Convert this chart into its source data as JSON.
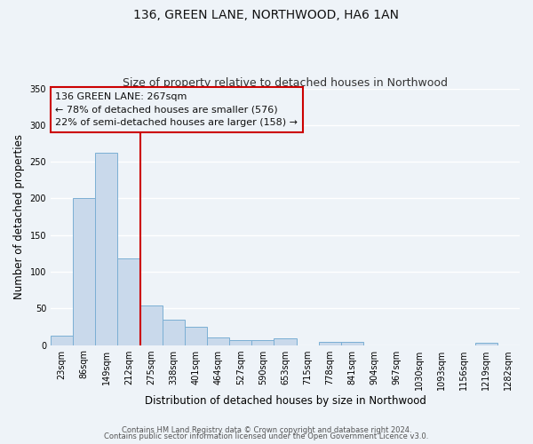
{
  "title": "136, GREEN LANE, NORTHWOOD, HA6 1AN",
  "subtitle": "Size of property relative to detached houses in Northwood",
  "xlabel": "Distribution of detached houses by size in Northwood",
  "ylabel": "Number of detached properties",
  "bar_labels": [
    "23sqm",
    "86sqm",
    "149sqm",
    "212sqm",
    "275sqm",
    "338sqm",
    "401sqm",
    "464sqm",
    "527sqm",
    "590sqm",
    "653sqm",
    "715sqm",
    "778sqm",
    "841sqm",
    "904sqm",
    "967sqm",
    "1030sqm",
    "1093sqm",
    "1156sqm",
    "1219sqm",
    "1282sqm"
  ],
  "bar_values": [
    13,
    200,
    262,
    118,
    54,
    35,
    25,
    10,
    7,
    7,
    9,
    0,
    4,
    4,
    0,
    0,
    0,
    0,
    0,
    3,
    0
  ],
  "bar_color": "#c9d9eb",
  "bar_edge_color": "#7bafd4",
  "vline_color": "#cc0000",
  "ylim": [
    0,
    350
  ],
  "yticks": [
    0,
    50,
    100,
    150,
    200,
    250,
    300,
    350
  ],
  "annotation_title": "136 GREEN LANE: 267sqm",
  "annotation_line1": "← 78% of detached houses are smaller (576)",
  "annotation_line2": "22% of semi-detached houses are larger (158) →",
  "annotation_box_color": "#cc0000",
  "background_color": "#eef3f8",
  "footer_line1": "Contains HM Land Registry data © Crown copyright and database right 2024.",
  "footer_line2": "Contains public sector information licensed under the Open Government Licence v3.0.",
  "title_fontsize": 10,
  "subtitle_fontsize": 9,
  "tick_fontsize": 7,
  "ylabel_fontsize": 8.5,
  "xlabel_fontsize": 8.5,
  "annotation_fontsize": 8,
  "footer_fontsize": 6
}
